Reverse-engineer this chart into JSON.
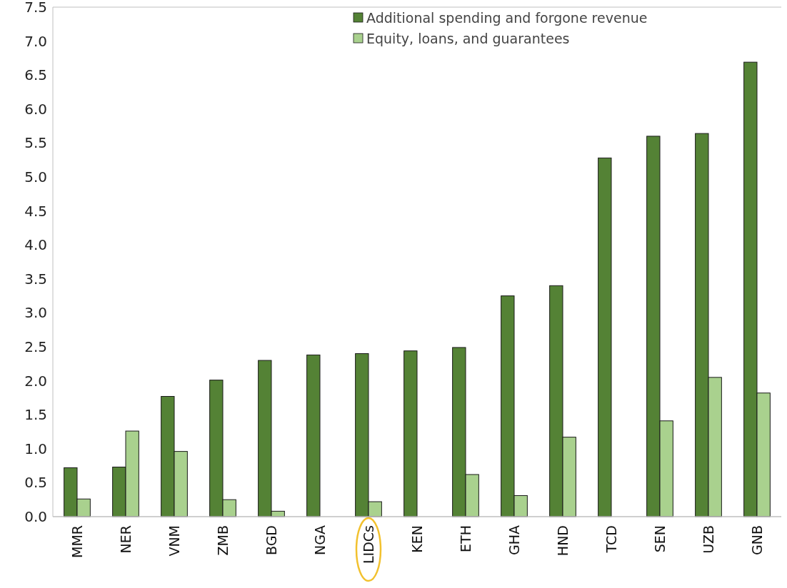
{
  "chart_data": {
    "type": "bar",
    "categories": [
      "MMR",
      "NER",
      "VNM",
      "ZMB",
      "BGD",
      "NGA",
      "LIDCs",
      "KEN",
      "ETH",
      "GHA",
      "HND",
      "TCD",
      "SEN",
      "UZB",
      "GNB"
    ],
    "series": [
      {
        "name": "Additional spending and forgone revenue",
        "color": "#548235",
        "values": [
          0.72,
          0.73,
          1.77,
          2.01,
          2.3,
          2.38,
          2.4,
          2.44,
          2.49,
          3.25,
          3.4,
          5.28,
          5.6,
          5.64,
          6.69
        ]
      },
      {
        "name": "Equity, loans, and guarantees",
        "color": "#a9d18e",
        "values": [
          0.26,
          1.26,
          0.96,
          0.25,
          0.08,
          null,
          0.22,
          null,
          0.62,
          0.31,
          1.17,
          null,
          1.41,
          2.05,
          1.82
        ]
      }
    ],
    "ylim": [
      0,
      7.5
    ],
    "yticks": [
      {
        "value": 0,
        "label": "0.0"
      },
      {
        "value": 0.5,
        "label": "0.5"
      },
      {
        "value": 1,
        "label": "1.0"
      },
      {
        "value": 1.5,
        "label": "1.5"
      },
      {
        "value": 2,
        "label": "2.0"
      },
      {
        "value": 2.5,
        "label": "2.5"
      },
      {
        "value": 3,
        "label": "3.0"
      },
      {
        "value": 3.5,
        "label": "3.5"
      },
      {
        "value": 4,
        "label": "4.0"
      },
      {
        "value": 4.5,
        "label": "4.5"
      },
      {
        "value": 5,
        "label": "5.0"
      },
      {
        "value": 5.5,
        "label": "5.5"
      },
      {
        "value": 6,
        "label": "6.0"
      },
      {
        "value": 6.5,
        "label": "6.5"
      },
      {
        "value": 7,
        "label": "7.0"
      },
      {
        "value": 7.5,
        "label": "7.5"
      }
    ],
    "grid": false,
    "legend": "top right"
  }
}
